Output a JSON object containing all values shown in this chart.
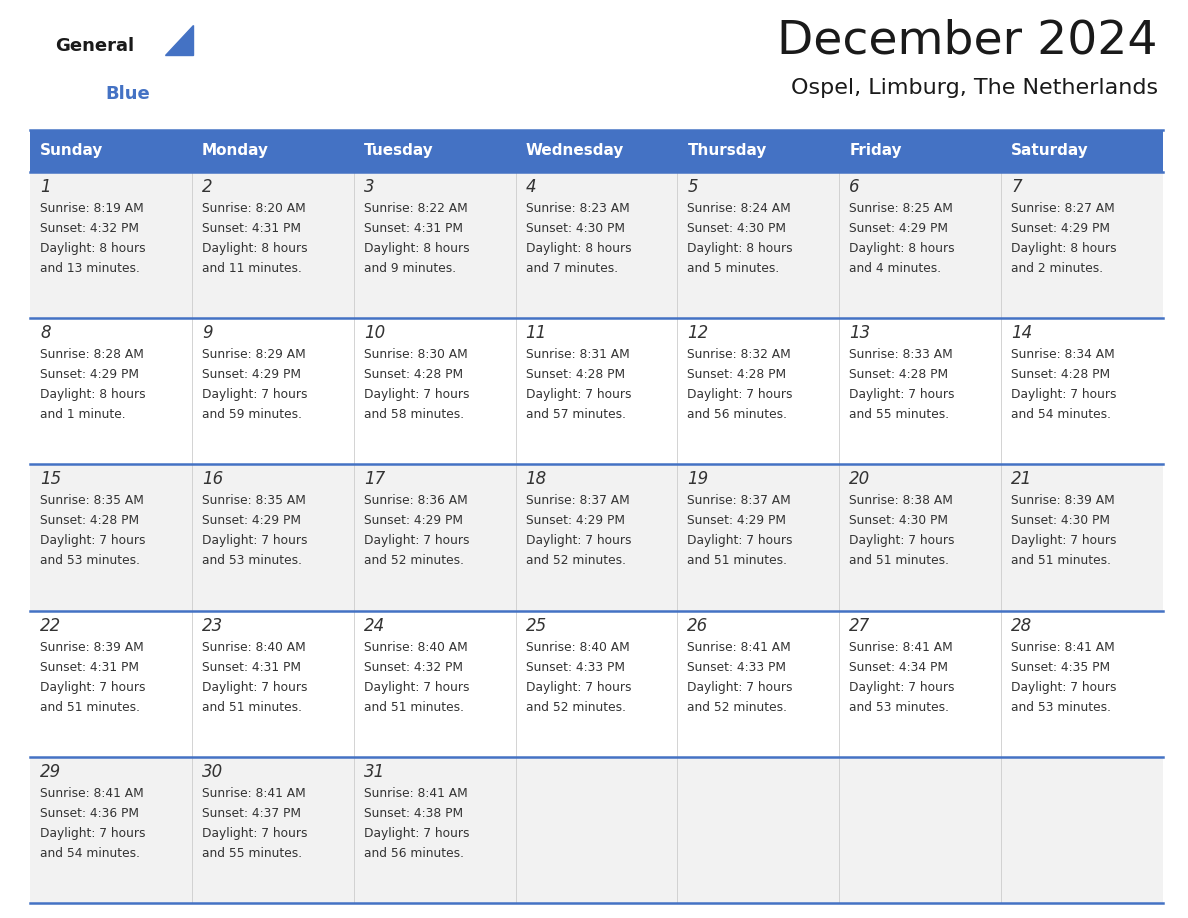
{
  "title": "December 2024",
  "subtitle": "Ospel, Limburg, The Netherlands",
  "header_bg_color": "#4472C4",
  "header_text_color": "#FFFFFF",
  "day_names": [
    "Sunday",
    "Monday",
    "Tuesday",
    "Wednesday",
    "Thursday",
    "Friday",
    "Saturday"
  ],
  "cell_bg_color_light": "#F2F2F2",
  "cell_bg_color_white": "#FFFFFF",
  "separator_color": "#4472C4",
  "text_color": "#333333",
  "days": [
    {
      "day": 1,
      "col": 0,
      "row": 0,
      "sunrise": "8:19 AM",
      "sunset": "4:32 PM",
      "daylight_line1": "Daylight: 8 hours",
      "daylight_line2": "and 13 minutes."
    },
    {
      "day": 2,
      "col": 1,
      "row": 0,
      "sunrise": "8:20 AM",
      "sunset": "4:31 PM",
      "daylight_line1": "Daylight: 8 hours",
      "daylight_line2": "and 11 minutes."
    },
    {
      "day": 3,
      "col": 2,
      "row": 0,
      "sunrise": "8:22 AM",
      "sunset": "4:31 PM",
      "daylight_line1": "Daylight: 8 hours",
      "daylight_line2": "and 9 minutes."
    },
    {
      "day": 4,
      "col": 3,
      "row": 0,
      "sunrise": "8:23 AM",
      "sunset": "4:30 PM",
      "daylight_line1": "Daylight: 8 hours",
      "daylight_line2": "and 7 minutes."
    },
    {
      "day": 5,
      "col": 4,
      "row": 0,
      "sunrise": "8:24 AM",
      "sunset": "4:30 PM",
      "daylight_line1": "Daylight: 8 hours",
      "daylight_line2": "and 5 minutes."
    },
    {
      "day": 6,
      "col": 5,
      "row": 0,
      "sunrise": "8:25 AM",
      "sunset": "4:29 PM",
      "daylight_line1": "Daylight: 8 hours",
      "daylight_line2": "and 4 minutes."
    },
    {
      "day": 7,
      "col": 6,
      "row": 0,
      "sunrise": "8:27 AM",
      "sunset": "4:29 PM",
      "daylight_line1": "Daylight: 8 hours",
      "daylight_line2": "and 2 minutes."
    },
    {
      "day": 8,
      "col": 0,
      "row": 1,
      "sunrise": "8:28 AM",
      "sunset": "4:29 PM",
      "daylight_line1": "Daylight: 8 hours",
      "daylight_line2": "and 1 minute."
    },
    {
      "day": 9,
      "col": 1,
      "row": 1,
      "sunrise": "8:29 AM",
      "sunset": "4:29 PM",
      "daylight_line1": "Daylight: 7 hours",
      "daylight_line2": "and 59 minutes."
    },
    {
      "day": 10,
      "col": 2,
      "row": 1,
      "sunrise": "8:30 AM",
      "sunset": "4:28 PM",
      "daylight_line1": "Daylight: 7 hours",
      "daylight_line2": "and 58 minutes."
    },
    {
      "day": 11,
      "col": 3,
      "row": 1,
      "sunrise": "8:31 AM",
      "sunset": "4:28 PM",
      "daylight_line1": "Daylight: 7 hours",
      "daylight_line2": "and 57 minutes."
    },
    {
      "day": 12,
      "col": 4,
      "row": 1,
      "sunrise": "8:32 AM",
      "sunset": "4:28 PM",
      "daylight_line1": "Daylight: 7 hours",
      "daylight_line2": "and 56 minutes."
    },
    {
      "day": 13,
      "col": 5,
      "row": 1,
      "sunrise": "8:33 AM",
      "sunset": "4:28 PM",
      "daylight_line1": "Daylight: 7 hours",
      "daylight_line2": "and 55 minutes."
    },
    {
      "day": 14,
      "col": 6,
      "row": 1,
      "sunrise": "8:34 AM",
      "sunset": "4:28 PM",
      "daylight_line1": "Daylight: 7 hours",
      "daylight_line2": "and 54 minutes."
    },
    {
      "day": 15,
      "col": 0,
      "row": 2,
      "sunrise": "8:35 AM",
      "sunset": "4:28 PM",
      "daylight_line1": "Daylight: 7 hours",
      "daylight_line2": "and 53 minutes."
    },
    {
      "day": 16,
      "col": 1,
      "row": 2,
      "sunrise": "8:35 AM",
      "sunset": "4:29 PM",
      "daylight_line1": "Daylight: 7 hours",
      "daylight_line2": "and 53 minutes."
    },
    {
      "day": 17,
      "col": 2,
      "row": 2,
      "sunrise": "8:36 AM",
      "sunset": "4:29 PM",
      "daylight_line1": "Daylight: 7 hours",
      "daylight_line2": "and 52 minutes."
    },
    {
      "day": 18,
      "col": 3,
      "row": 2,
      "sunrise": "8:37 AM",
      "sunset": "4:29 PM",
      "daylight_line1": "Daylight: 7 hours",
      "daylight_line2": "and 52 minutes."
    },
    {
      "day": 19,
      "col": 4,
      "row": 2,
      "sunrise": "8:37 AM",
      "sunset": "4:29 PM",
      "daylight_line1": "Daylight: 7 hours",
      "daylight_line2": "and 51 minutes."
    },
    {
      "day": 20,
      "col": 5,
      "row": 2,
      "sunrise": "8:38 AM",
      "sunset": "4:30 PM",
      "daylight_line1": "Daylight: 7 hours",
      "daylight_line2": "and 51 minutes."
    },
    {
      "day": 21,
      "col": 6,
      "row": 2,
      "sunrise": "8:39 AM",
      "sunset": "4:30 PM",
      "daylight_line1": "Daylight: 7 hours",
      "daylight_line2": "and 51 minutes."
    },
    {
      "day": 22,
      "col": 0,
      "row": 3,
      "sunrise": "8:39 AM",
      "sunset": "4:31 PM",
      "daylight_line1": "Daylight: 7 hours",
      "daylight_line2": "and 51 minutes."
    },
    {
      "day": 23,
      "col": 1,
      "row": 3,
      "sunrise": "8:40 AM",
      "sunset": "4:31 PM",
      "daylight_line1": "Daylight: 7 hours",
      "daylight_line2": "and 51 minutes."
    },
    {
      "day": 24,
      "col": 2,
      "row": 3,
      "sunrise": "8:40 AM",
      "sunset": "4:32 PM",
      "daylight_line1": "Daylight: 7 hours",
      "daylight_line2": "and 51 minutes."
    },
    {
      "day": 25,
      "col": 3,
      "row": 3,
      "sunrise": "8:40 AM",
      "sunset": "4:33 PM",
      "daylight_line1": "Daylight: 7 hours",
      "daylight_line2": "and 52 minutes."
    },
    {
      "day": 26,
      "col": 4,
      "row": 3,
      "sunrise": "8:41 AM",
      "sunset": "4:33 PM",
      "daylight_line1": "Daylight: 7 hours",
      "daylight_line2": "and 52 minutes."
    },
    {
      "day": 27,
      "col": 5,
      "row": 3,
      "sunrise": "8:41 AM",
      "sunset": "4:34 PM",
      "daylight_line1": "Daylight: 7 hours",
      "daylight_line2": "and 53 minutes."
    },
    {
      "day": 28,
      "col": 6,
      "row": 3,
      "sunrise": "8:41 AM",
      "sunset": "4:35 PM",
      "daylight_line1": "Daylight: 7 hours",
      "daylight_line2": "and 53 minutes."
    },
    {
      "day": 29,
      "col": 0,
      "row": 4,
      "sunrise": "8:41 AM",
      "sunset": "4:36 PM",
      "daylight_line1": "Daylight: 7 hours",
      "daylight_line2": "and 54 minutes."
    },
    {
      "day": 30,
      "col": 1,
      "row": 4,
      "sunrise": "8:41 AM",
      "sunset": "4:37 PM",
      "daylight_line1": "Daylight: 7 hours",
      "daylight_line2": "and 55 minutes."
    },
    {
      "day": 31,
      "col": 2,
      "row": 4,
      "sunrise": "8:41 AM",
      "sunset": "4:38 PM",
      "daylight_line1": "Daylight: 7 hours",
      "daylight_line2": "and 56 minutes."
    }
  ],
  "fig_width": 11.88,
  "fig_height": 9.18,
  "dpi": 100
}
